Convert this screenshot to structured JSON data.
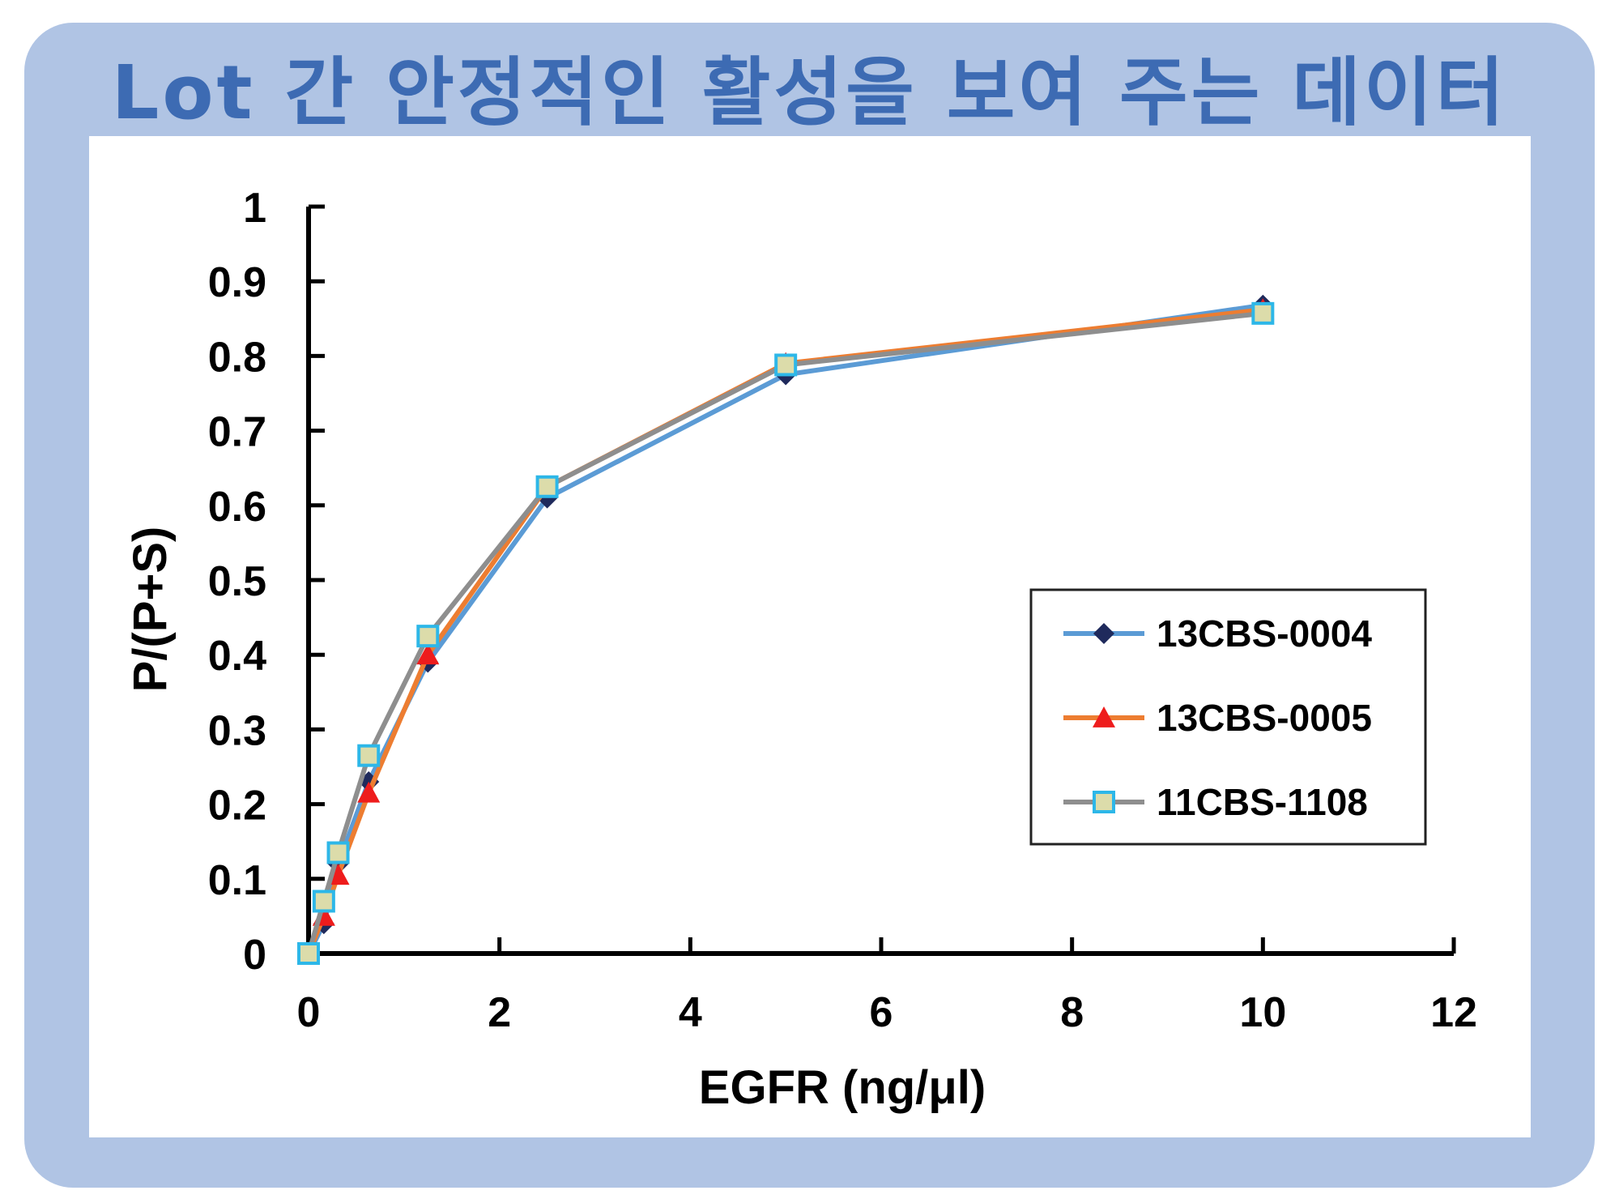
{
  "page_title": "Lot 간 안정적인 활성을 보여 주는 데이터",
  "chart_data": {
    "type": "line",
    "title": "Lot 간 안정적인 활성을 보여 주는 데이터",
    "xlabel": "EGFR  (ng/μl)",
    "ylabel": "P/(P+S)",
    "xlim": [
      0,
      12
    ],
    "ylim": [
      0,
      1
    ],
    "x_ticks": [
      "0",
      "2",
      "4",
      "6",
      "8",
      "10",
      "12"
    ],
    "y_ticks": [
      "0",
      "0.1",
      "0.2",
      "0.3",
      "0.4",
      "0.5",
      "0.6",
      "0.7",
      "0.8",
      "0.9",
      "1"
    ],
    "x": [
      0,
      0.16,
      0.31,
      0.63,
      1.25,
      2.5,
      5,
      10
    ],
    "series": [
      {
        "name": "13CBS-0004",
        "values": [
          0,
          0.04,
          0.12,
          0.23,
          0.39,
          0.61,
          0.775,
          0.868
        ],
        "line_color": "#5b9bd5",
        "marker": "diamond",
        "marker_color": "#1f2a5c"
      },
      {
        "name": "13CBS-0005",
        "values": [
          0,
          0.05,
          0.105,
          0.215,
          0.4,
          0.625,
          0.79,
          0.862
        ],
        "line_color": "#ed7d31",
        "marker": "triangle",
        "marker_color": "#ee1c1c"
      },
      {
        "name": "11CBS-1108",
        "values": [
          0,
          0.07,
          0.135,
          0.265,
          0.425,
          0.625,
          0.788,
          0.857
        ],
        "line_color": "#8e8e8e",
        "marker": "square",
        "marker_color": "#dcdcaa",
        "marker_edge": "#2db7e8"
      }
    ],
    "grid": false,
    "legend": "right"
  }
}
